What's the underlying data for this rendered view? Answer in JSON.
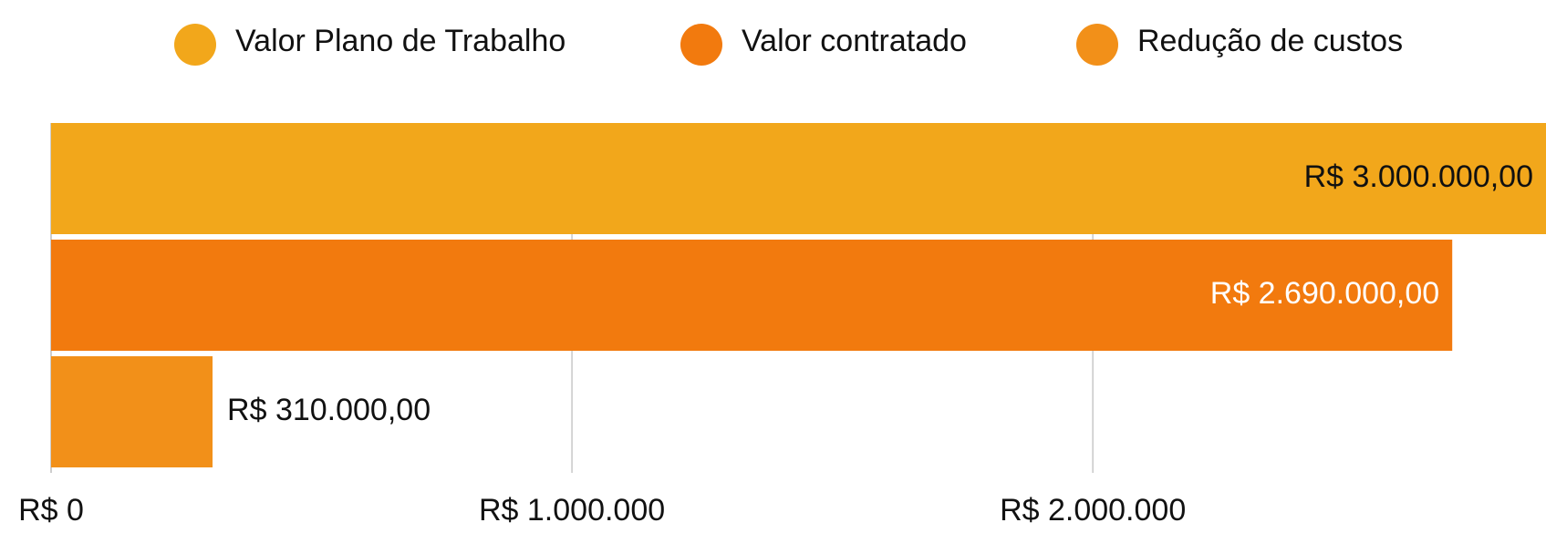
{
  "chart_data": {
    "type": "hbar",
    "series": [
      {
        "name": "Valor Plano de Trabalho",
        "color": "#f2a71b",
        "values": [
          3000000
        ],
        "value_labels": [
          "R$ 3.000.000,00"
        ]
      },
      {
        "name": "Valor contratado",
        "color": "#f27a0e",
        "values": [
          2690000
        ],
        "value_labels": [
          "R$ 2.690.000,00"
        ]
      },
      {
        "name": "Redução de custos",
        "color": "#f29019",
        "values": [
          310000
        ],
        "value_labels": [
          "R$ 310.000,00"
        ]
      }
    ],
    "xlim": [
      0,
      2870000
    ],
    "xticks": [
      {
        "value": 0,
        "label": "R$ 0"
      },
      {
        "value": 1000000,
        "label": "R$ 1.000.000"
      },
      {
        "value": 2000000,
        "label": "R$ 2.000.000"
      }
    ],
    "grid": true,
    "legend": "top"
  }
}
